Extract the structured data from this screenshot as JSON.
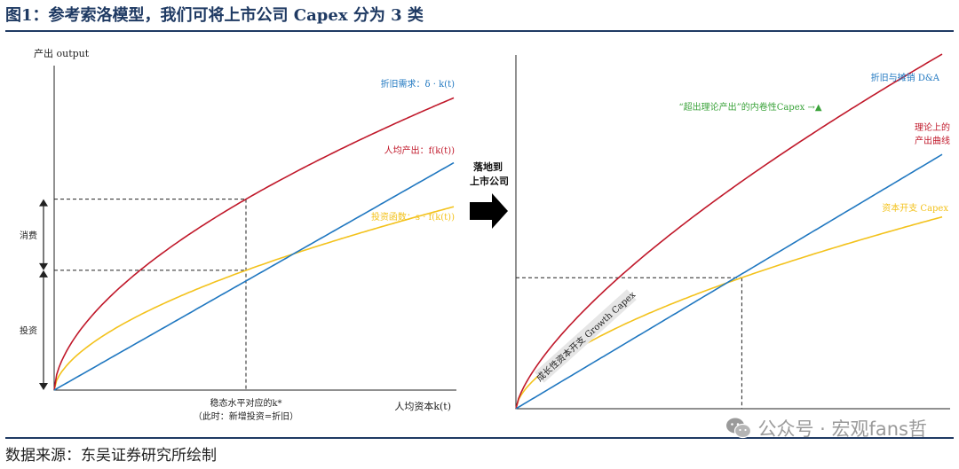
{
  "figure": {
    "title": "图1：参考索洛模型，我们可将上市公司 Capex 分为 3 类",
    "source": "数据来源：东吴证券研究所绘制",
    "watermark": "公众号 · 宏观fans哲",
    "watermark_icon": "wechat-icon"
  },
  "colors": {
    "blue": "#1f77c0",
    "red": "#c0182a",
    "yellow": "#f3c21c",
    "green": "#3aa33a",
    "title": "#1f3a63"
  },
  "transition": {
    "label_line1": "落地到",
    "label_line2": "上市公司",
    "arrow_icon": "arrow-right-icon"
  },
  "chart_data": [
    {
      "type": "line",
      "yaxis_label": "产出 output",
      "xaxis_label": "人均资本k(t)",
      "steady_state_label_line1": "稳态水平对应的k*",
      "steady_state_label_line2": "（此时：新增投资=折旧）",
      "bracket_labels": {
        "consumption": "消费",
        "investment": "投资"
      },
      "xlim": [
        0,
        10
      ],
      "ylim": [
        0,
        10
      ],
      "k_star": 4.8,
      "series": [
        {
          "name": "折旧需求：δ · k(t)",
          "color": "#1f77c0",
          "form": "linear",
          "a": 0.7542
        },
        {
          "name": "人均产出：f(k(t))",
          "color": "#c0182a",
          "form": "power",
          "a": 2.55,
          "p": 0.58
        },
        {
          "name": "投资函数：s · f(k(t))",
          "color": "#f3c21c",
          "form": "power",
          "a": 1.6,
          "p": 0.58
        }
      ]
    },
    {
      "type": "line",
      "xlim": [
        0,
        10
      ],
      "ylim": [
        0,
        10
      ],
      "k_star": 5.3,
      "series": [
        {
          "name": "折旧与摊销 D&A",
          "color": "#1f77c0",
          "form": "linear",
          "a": 0.7547
        },
        {
          "name_line1": "理论上的",
          "name_line2": "产出曲线",
          "color": "#c0182a",
          "form": "power",
          "a": 2.1,
          "p": 0.7
        },
        {
          "name": "资本开支 Capex",
          "color": "#f3c21c",
          "form": "power",
          "a": 1.43,
          "p": 0.6
        }
      ],
      "annotations": {
        "excess_capex": "“超出理论产出”的内卷性Capex →▲",
        "growth_capex": "成长性资本开支 Growth Capex"
      }
    }
  ]
}
